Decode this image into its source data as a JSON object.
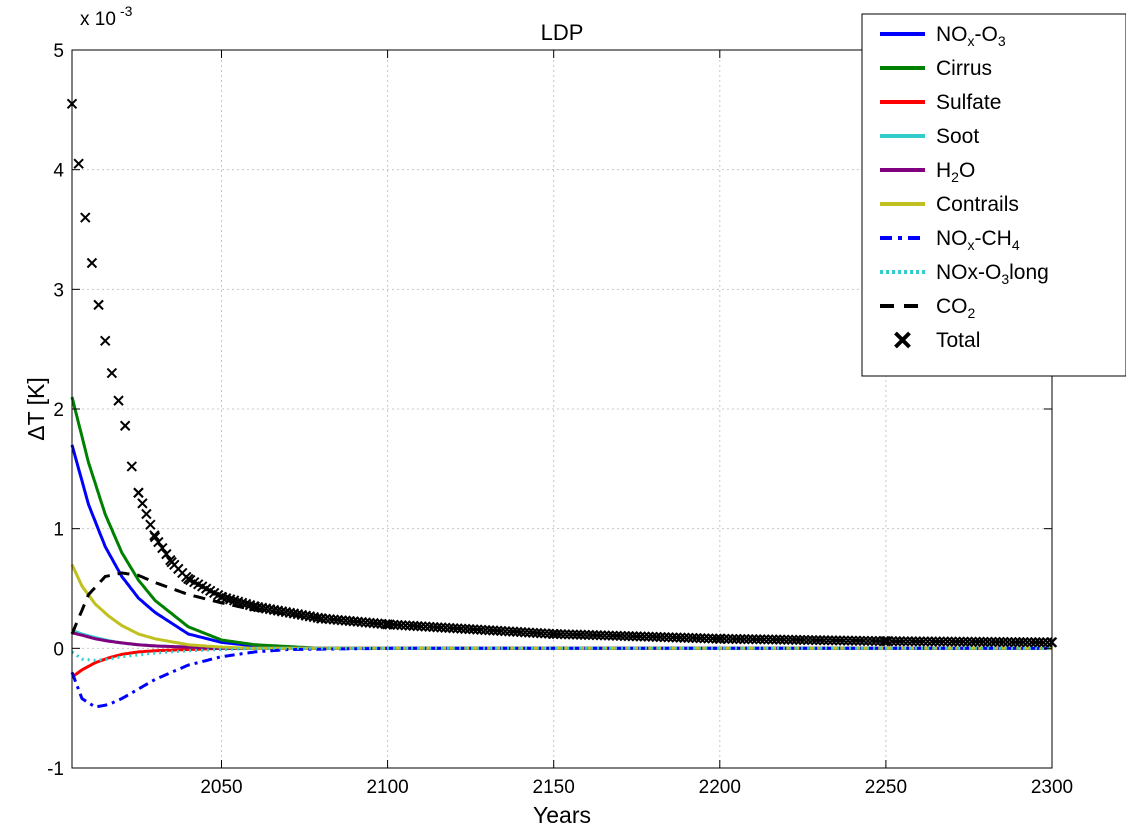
{
  "chart_data": {
    "type": "line",
    "title": "LDP",
    "xlabel": "Years",
    "ylabel": "ΔT [K]",
    "y_exponent_label": "x 10",
    "y_exponent_power": "-3",
    "xlim": [
      2005,
      2300
    ],
    "ylim": [
      -1,
      5
    ],
    "y_scale_factor": 0.001,
    "x_ticks": [
      2050,
      2100,
      2150,
      2200,
      2250,
      2300
    ],
    "y_ticks": [
      -1,
      0,
      1,
      2,
      3,
      4,
      5
    ],
    "grid": true,
    "legend_position": "top-right",
    "series": [
      {
        "name": "NOx-O3",
        "label_parts": [
          [
            "NO",
            ""
          ],
          [
            "x",
            "sub"
          ],
          [
            "-O",
            ""
          ],
          [
            "3",
            "sub"
          ]
        ],
        "color": "#0000ff",
        "style": "solid",
        "x": [
          2005,
          2010,
          2015,
          2020,
          2025,
          2030,
          2040,
          2050,
          2060,
          2080,
          2100,
          2300
        ],
        "y": [
          1.7,
          1.2,
          0.85,
          0.6,
          0.42,
          0.3,
          0.12,
          0.05,
          0.02,
          0.0,
          0.0,
          0.0
        ]
      },
      {
        "name": "Cirrus",
        "label_parts": [
          [
            "Cirrus",
            ""
          ]
        ],
        "color": "#008000",
        "style": "solid",
        "x": [
          2005,
          2010,
          2015,
          2020,
          2025,
          2030,
          2040,
          2050,
          2060,
          2080,
          2100,
          2300
        ],
        "y": [
          2.1,
          1.55,
          1.12,
          0.8,
          0.57,
          0.4,
          0.18,
          0.07,
          0.03,
          0.0,
          0.0,
          0.0
        ]
      },
      {
        "name": "Sulfate",
        "label_parts": [
          [
            "Sulfate",
            ""
          ]
        ],
        "color": "#ff0000",
        "style": "solid",
        "x": [
          2005,
          2008,
          2012,
          2016,
          2020,
          2025,
          2030,
          2040,
          2050,
          2060,
          2300
        ],
        "y": [
          -0.24,
          -0.18,
          -0.12,
          -0.08,
          -0.05,
          -0.03,
          -0.02,
          -0.01,
          0.0,
          0.0,
          0.0
        ]
      },
      {
        "name": "Soot",
        "label_parts": [
          [
            "Soot",
            ""
          ]
        ],
        "color": "#33cccc",
        "style": "solid",
        "x": [
          2005,
          2008,
          2012,
          2016,
          2020,
          2025,
          2030,
          2040,
          2050,
          2060,
          2300
        ],
        "y": [
          0.15,
          0.12,
          0.09,
          0.065,
          0.045,
          0.03,
          0.02,
          0.01,
          0.0,
          0.0,
          0.0
        ]
      },
      {
        "name": "H2O",
        "label_parts": [
          [
            "H",
            ""
          ],
          [
            "2",
            "sub"
          ],
          [
            "O",
            ""
          ]
        ],
        "color": "#800080",
        "style": "solid",
        "x": [
          2005,
          2008,
          2012,
          2016,
          2020,
          2025,
          2030,
          2040,
          2050,
          2060,
          2300
        ],
        "y": [
          0.13,
          0.11,
          0.08,
          0.06,
          0.045,
          0.03,
          0.02,
          0.01,
          0.0,
          0.0,
          0.0
        ]
      },
      {
        "name": "Contrails",
        "label_parts": [
          [
            "Contrails",
            ""
          ]
        ],
        "color": "#c0c020",
        "style": "solid",
        "x": [
          2005,
          2008,
          2012,
          2016,
          2020,
          2025,
          2030,
          2040,
          2050,
          2060,
          2300
        ],
        "y": [
          0.7,
          0.52,
          0.37,
          0.27,
          0.19,
          0.12,
          0.08,
          0.03,
          0.01,
          0.0,
          0.0
        ]
      },
      {
        "name": "NOx-CH4",
        "label_parts": [
          [
            "NO",
            ""
          ],
          [
            "x",
            "sub"
          ],
          [
            "-CH",
            ""
          ],
          [
            "4",
            "sub"
          ]
        ],
        "color": "#0000ff",
        "style": "dashdot",
        "x": [
          2005,
          2008,
          2012,
          2016,
          2020,
          2025,
          2030,
          2040,
          2050,
          2060,
          2070,
          2100,
          2300
        ],
        "y": [
          -0.2,
          -0.42,
          -0.49,
          -0.47,
          -0.42,
          -0.34,
          -0.26,
          -0.14,
          -0.07,
          -0.03,
          -0.01,
          0.0,
          0.0
        ]
      },
      {
        "name": "NOx-O3long",
        "label_parts": [
          [
            "NOx-O",
            ""
          ],
          [
            "3",
            "sub"
          ],
          [
            "long",
            ""
          ]
        ],
        "color": "#33cccc",
        "style": "dotted",
        "x": [
          2005,
          2008,
          2012,
          2016,
          2020,
          2030,
          2040,
          2050,
          2060,
          2300
        ],
        "y": [
          -0.03,
          -0.09,
          -0.1,
          -0.09,
          -0.07,
          -0.04,
          -0.02,
          -0.01,
          0.0,
          0.0
        ]
      },
      {
        "name": "CO2",
        "label_parts": [
          [
            "CO",
            ""
          ],
          [
            "2",
            "sub"
          ]
        ],
        "color": "#000000",
        "style": "dashed",
        "x": [
          2005,
          2010,
          2015,
          2020,
          2025,
          2030,
          2040,
          2050,
          2060,
          2080,
          2100,
          2150,
          2200,
          2250,
          2300
        ],
        "y": [
          0.12,
          0.45,
          0.6,
          0.63,
          0.61,
          0.55,
          0.45,
          0.38,
          0.32,
          0.25,
          0.2,
          0.12,
          0.08,
          0.06,
          0.05
        ]
      },
      {
        "name": "Total",
        "label_parts": [
          [
            "Total",
            ""
          ]
        ],
        "color": "#000000",
        "style": "markers",
        "x": [
          2005,
          2007,
          2009,
          2011,
          2013,
          2015,
          2017,
          2019,
          2021,
          2023,
          2025,
          2030,
          2035,
          2040,
          2050,
          2060,
          2080,
          2100,
          2150,
          2200,
          2250,
          2300
        ],
        "y": [
          4.55,
          4.05,
          3.6,
          3.22,
          2.87,
          2.57,
          2.3,
          2.07,
          1.86,
          1.52,
          1.3,
          0.93,
          0.72,
          0.58,
          0.43,
          0.35,
          0.25,
          0.2,
          0.12,
          0.08,
          0.06,
          0.05
        ]
      }
    ]
  }
}
